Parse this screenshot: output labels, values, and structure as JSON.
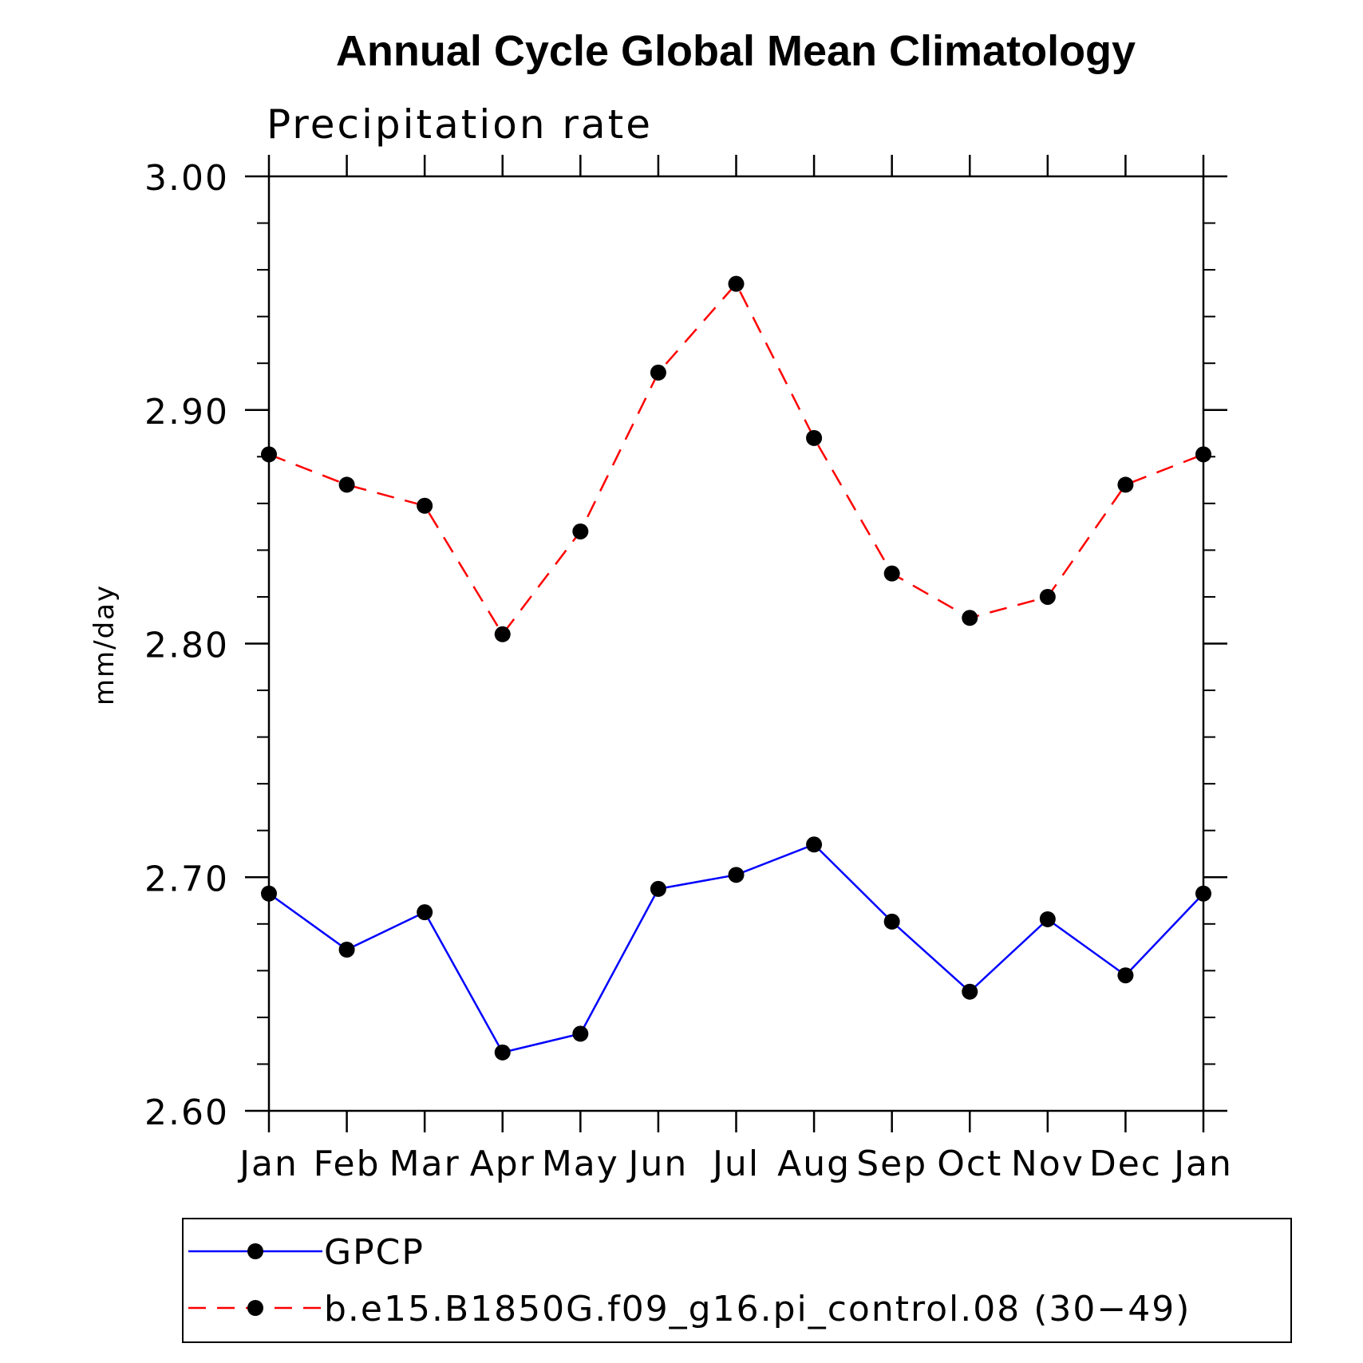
{
  "chart_data": {
    "type": "line",
    "title": "Annual Cycle Global Mean Climatology",
    "subtitle": "Precipitation rate",
    "xlabel": "",
    "ylabel": "mm/day",
    "ylim": [
      2.6,
      3.0
    ],
    "yticks": [
      "2.60",
      "2.70",
      "2.80",
      "2.90",
      "3.00"
    ],
    "categories": [
      "Jan",
      "Feb",
      "Mar",
      "Apr",
      "May",
      "Jun",
      "Jul",
      "Aug",
      "Sep",
      "Oct",
      "Nov",
      "Dec",
      "Jan"
    ],
    "series": [
      {
        "name": "GPCP",
        "color": "#0000ff",
        "style": "solid",
        "values": [
          2.693,
          2.669,
          2.685,
          2.625,
          2.633,
          2.695,
          2.701,
          2.714,
          2.681,
          2.651,
          2.682,
          2.658,
          2.693
        ]
      },
      {
        "name": "b.e15.B1850G.f09_g16.pi_control.08 (30-49)",
        "color": "#ff0000",
        "style": "dashed",
        "values": [
          2.881,
          2.868,
          2.859,
          2.804,
          2.848,
          2.916,
          2.954,
          2.888,
          2.83,
          2.811,
          2.82,
          2.868,
          2.881
        ]
      }
    ],
    "legend": {
      "position": "bottom",
      "entries": [
        "GPCP",
        "b.e15.B1850G.f09_g16.pi_control.08 (30−49)"
      ]
    }
  }
}
